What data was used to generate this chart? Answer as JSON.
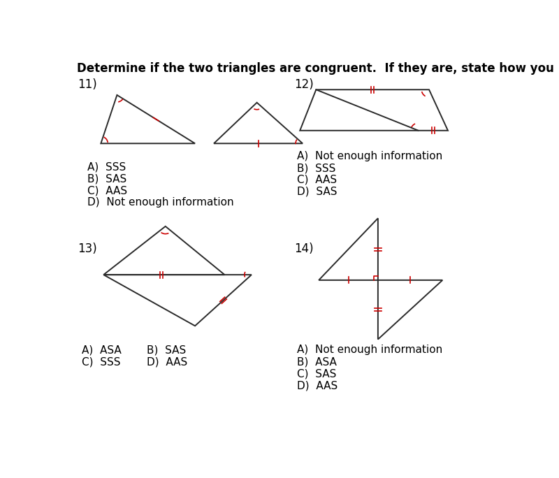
{
  "title": "Determine if the two triangles are congruent.  If they are, state how you know.",
  "title_fontsize": 12,
  "bg_color": "#ffffff",
  "mark_color": "#cc0000",
  "line_color": "#2a2a2a",
  "q11_choices": [
    "A)  SSS",
    "B)  SAS",
    "C)  AAS",
    "D)  Not enough information"
  ],
  "q12_choices": [
    "A)  Not enough information",
    "B)  SSS",
    "C)  AAS",
    "D)  SAS"
  ],
  "q14_choices": [
    "A)  Not enough information",
    "B)  ASA",
    "C)  SAS",
    "D)  AAS"
  ]
}
